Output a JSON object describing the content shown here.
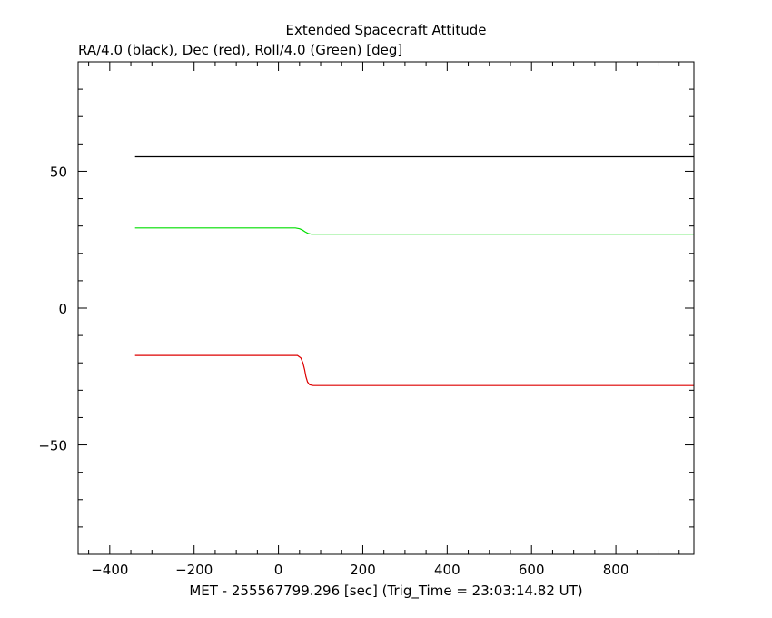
{
  "chart_data": {
    "type": "line",
    "title": "Extended Spacecraft Attitude",
    "subtitle": "RA/4.0 (black), Dec (red), Roll/4.0 (Green) [deg]",
    "xlabel": "MET - 255567799.296 [sec] (Trig_Time = 23:03:14.82 UT)",
    "ylabel": "",
    "xlim": [
      -475,
      985
    ],
    "ylim": [
      -90,
      90
    ],
    "x_ticks": [
      -400,
      -200,
      0,
      200,
      400,
      600,
      800
    ],
    "x_tick_labels": [
      "−400",
      "−200",
      "0",
      "200",
      "400",
      "600",
      "800"
    ],
    "y_ticks": [
      -50,
      0,
      50
    ],
    "y_tick_labels": [
      "−50",
      "0",
      "50"
    ],
    "grid": false,
    "series": [
      {
        "color": "#000000",
        "points": [
          [
            -340,
            55.3
          ],
          [
            985,
            55.3
          ]
        ]
      },
      {
        "color": "#00dd00",
        "points": [
          [
            -340,
            29.3
          ],
          [
            40,
            29.3
          ],
          [
            50,
            29.0
          ],
          [
            57,
            28.5
          ],
          [
            63,
            27.9
          ],
          [
            70,
            27.3
          ],
          [
            78,
            27.0
          ],
          [
            985,
            27.0
          ]
        ]
      },
      {
        "color": "#dd0000",
        "points": [
          [
            -340,
            -17.3
          ],
          [
            45,
            -17.3
          ],
          [
            53,
            -18.2
          ],
          [
            58,
            -20.0
          ],
          [
            62,
            -22.5
          ],
          [
            65,
            -25.0
          ],
          [
            69,
            -27.0
          ],
          [
            74,
            -28.0
          ],
          [
            82,
            -28.3
          ],
          [
            985,
            -28.3
          ]
        ]
      }
    ]
  }
}
